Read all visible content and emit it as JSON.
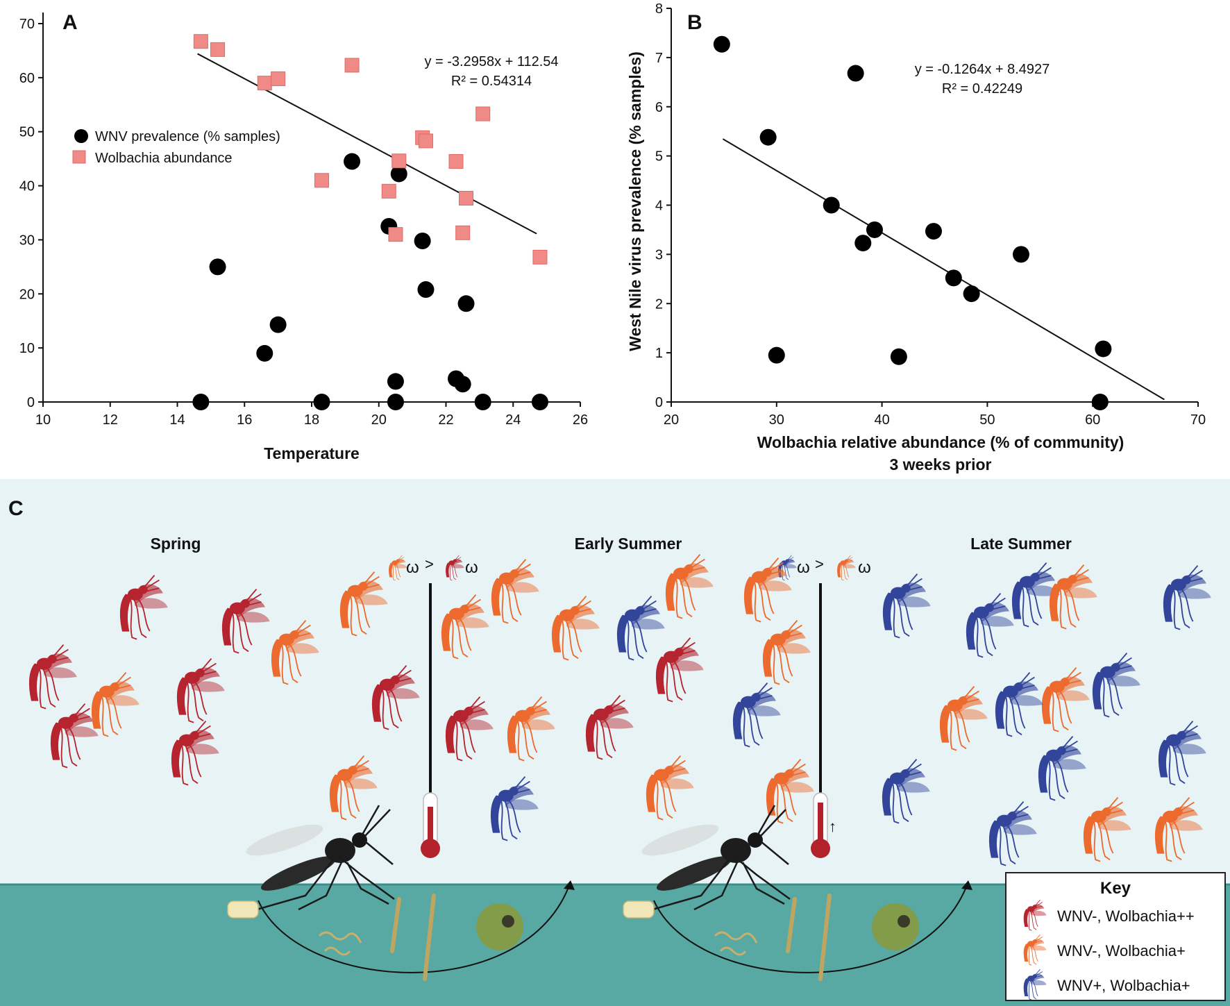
{
  "chart_data": [
    {
      "panel": "A",
      "type": "scatter",
      "xlabel": "Temperature",
      "ylabel": "",
      "xlim": [
        10,
        26
      ],
      "ylim": [
        0,
        70
      ],
      "xticks": [
        10,
        12,
        14,
        16,
        18,
        20,
        22,
        24,
        26
      ],
      "yticks": [
        0,
        10,
        20,
        30,
        40,
        50,
        60,
        70
      ],
      "legend_position": "left",
      "series": [
        {
          "name": "WNV prevalence (% samples)",
          "marker": "circle",
          "color": "#000000",
          "points": [
            [
              14.7,
              0
            ],
            [
              15.2,
              25
            ],
            [
              16.6,
              9
            ],
            [
              17.0,
              14.3
            ],
            [
              18.3,
              0
            ],
            [
              19.2,
              44.5
            ],
            [
              20.3,
              32.5
            ],
            [
              20.5,
              3.8
            ],
            [
              20.5,
              0
            ],
            [
              20.6,
              42.2
            ],
            [
              21.3,
              29.8
            ],
            [
              21.4,
              20.8
            ],
            [
              22.3,
              4.3
            ],
            [
              22.5,
              3.3
            ],
            [
              22.6,
              18.2
            ],
            [
              23.1,
              0
            ],
            [
              24.8,
              0
            ]
          ]
        },
        {
          "name": "Wolbachia abundance",
          "marker": "square",
          "color": "#f08a86",
          "points": [
            [
              14.7,
              66.7
            ],
            [
              15.2,
              65.2
            ],
            [
              16.6,
              59
            ],
            [
              17.0,
              59.8
            ],
            [
              18.3,
              41
            ],
            [
              19.2,
              62.3
            ],
            [
              20.3,
              39
            ],
            [
              20.5,
              31
            ],
            [
              20.6,
              44.6
            ],
            [
              21.3,
              48.9
            ],
            [
              21.4,
              48.3
            ],
            [
              22.3,
              44.5
            ],
            [
              22.5,
              31.3
            ],
            [
              22.6,
              37.7
            ],
            [
              23.1,
              53.3
            ],
            [
              24.8,
              26.8
            ]
          ]
        }
      ],
      "trendline": {
        "slope": -3.2958,
        "intercept": 112.54,
        "x_range": [
          14.6,
          24.7
        ],
        "equation": "y = -3.2958x + 112.54",
        "r2": "R² = 0.54314"
      }
    },
    {
      "panel": "B",
      "type": "scatter",
      "xlabel": "Wolbachia relative abundance (% of community)",
      "xlabel2": "3 weeks prior",
      "ylabel": "West Nile virus prevalence (% samples)",
      "xlim": [
        20,
        70
      ],
      "ylim": [
        0,
        8
      ],
      "xticks": [
        20,
        30,
        40,
        50,
        60,
        70
      ],
      "yticks": [
        0,
        1,
        2,
        3,
        4,
        5,
        6,
        7,
        8
      ],
      "series": [
        {
          "marker": "circle",
          "color": "#000000",
          "points": [
            [
              24.8,
              7.27
            ],
            [
              29.2,
              5.38
            ],
            [
              30.0,
              0.95
            ],
            [
              35.2,
              4.0
            ],
            [
              37.5,
              6.68
            ],
            [
              38.2,
              3.23
            ],
            [
              39.3,
              3.5
            ],
            [
              41.6,
              0.92
            ],
            [
              44.9,
              3.47
            ],
            [
              46.8,
              2.52
            ],
            [
              48.5,
              2.2
            ],
            [
              53.2,
              3.0
            ],
            [
              60.7,
              0.0
            ],
            [
              61.0,
              1.08
            ]
          ]
        }
      ],
      "trendline": {
        "slope": -0.1264,
        "intercept": 8.4927,
        "x_range": [
          24.9,
          66.8
        ],
        "equation": "y = -0.1264x + 8.4927",
        "r2": "R² = 0.42249"
      }
    }
  ],
  "panel_a": {
    "letter": "A"
  },
  "panel_b": {
    "letter": "B"
  },
  "panel_c": {
    "letter": "C",
    "seasons": [
      "Spring",
      "Early Summer",
      "Late Summer"
    ],
    "comparison_symbol": "ω",
    "comparison_operator": ">",
    "temperature_arrow": "↑",
    "key": {
      "title": "Key",
      "items": [
        {
          "label": "WNV-, Wolbachia++",
          "color": "#b5242f"
        },
        {
          "label": "WNV-, Wolbachia+",
          "color": "#ec6a2d"
        },
        {
          "label": "WNV+, Wolbachia+",
          "color": "#33459a"
        }
      ]
    },
    "colors": {
      "sky": "#e7f3f5",
      "water": "#58a9a3",
      "water_line": "#3b8f88",
      "thermometer": "#b3212b"
    }
  }
}
